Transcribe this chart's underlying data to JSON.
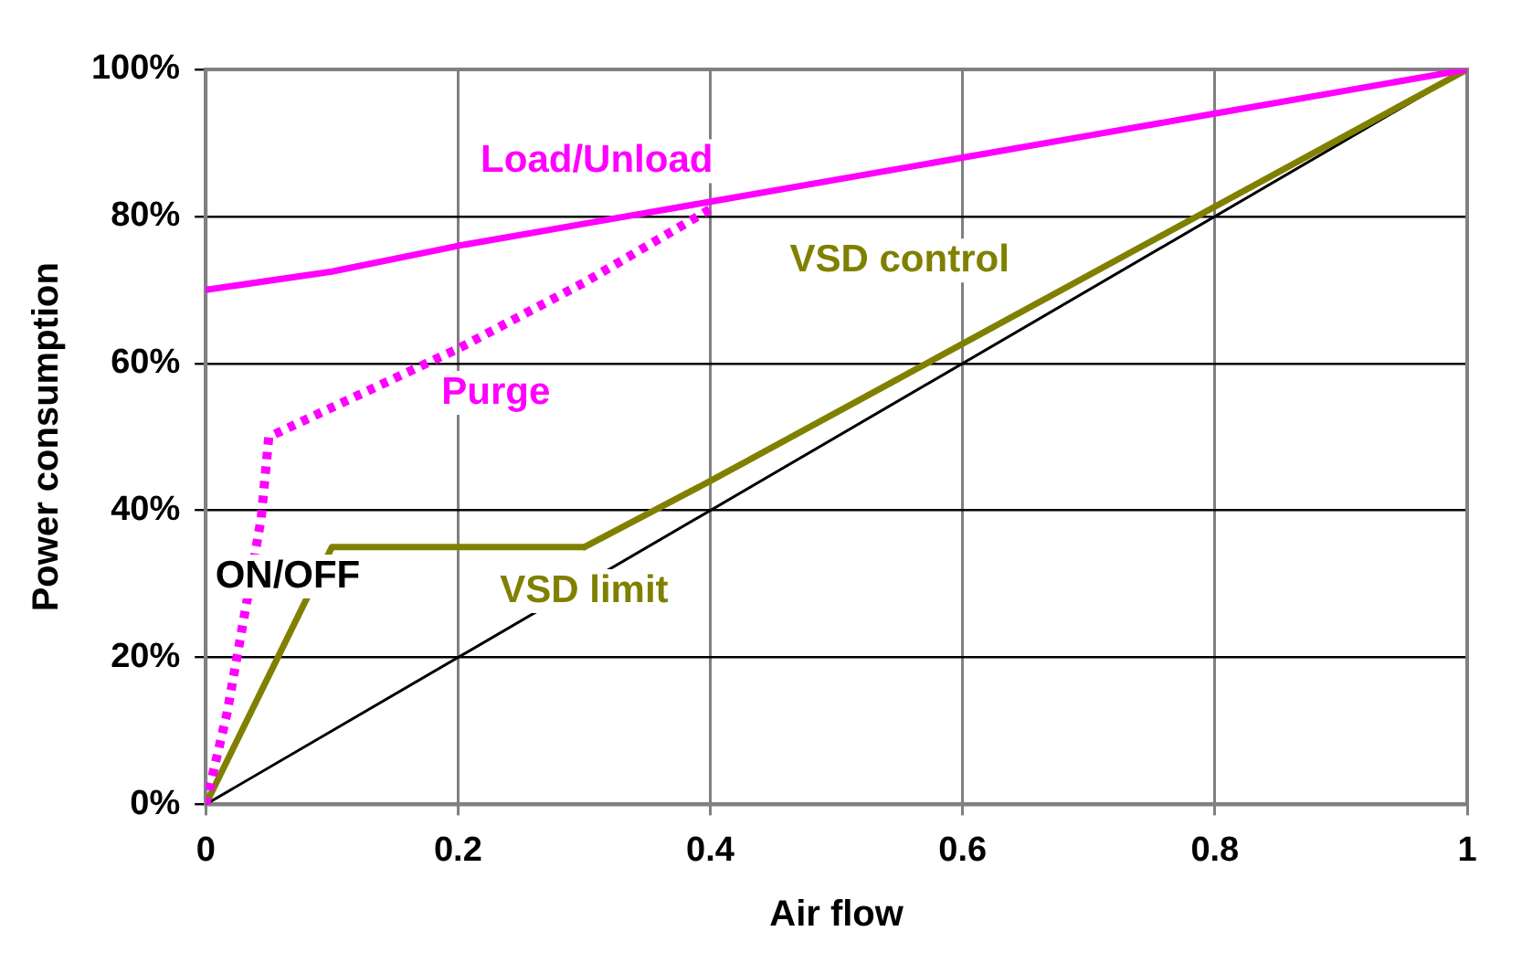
{
  "chart_data": {
    "type": "line",
    "xlabel": "Air flow",
    "ylabel": "Power consumption",
    "xlim": [
      0,
      1
    ],
    "xticks": [
      0,
      0.2,
      0.4,
      0.6,
      0.8,
      1
    ],
    "ylim": [
      0,
      100
    ],
    "yticks": [
      {
        "value": 0,
        "label": "0%"
      },
      {
        "value": 20,
        "label": "20%"
      },
      {
        "value": 40,
        "label": "40%"
      },
      {
        "value": 60,
        "label": "60%"
      },
      {
        "value": 80,
        "label": "80%"
      },
      {
        "value": 100,
        "label": "100%"
      }
    ],
    "grid": true,
    "legend": false,
    "marker": "none",
    "series": [
      {
        "name": "Load/Unload",
        "color": "#ff00ff",
        "x": [
          0,
          0.1,
          0.2,
          0.3,
          0.4,
          0.5,
          0.6,
          0.7,
          0.8,
          0.9,
          1
        ],
        "values": [
          70,
          72.5,
          76,
          79,
          82,
          85,
          88,
          91,
          94,
          97,
          100
        ]
      },
      {
        "name": "Purge",
        "color": "#ff00ff",
        "line_style": "dotted",
        "x": [
          0,
          0.017,
          0.033,
          0.044,
          0.05,
          0.1,
          0.2,
          0.3,
          0.4
        ],
        "values": [
          0,
          12.5,
          28,
          39,
          50,
          54,
          62,
          71,
          81
        ]
      },
      {
        "name": "VSD limit",
        "color": "#808000",
        "x": [
          0,
          0.1,
          0.3
        ],
        "values": [
          0,
          35,
          35
        ]
      },
      {
        "name": "VSD control",
        "color": "#808000",
        "x": [
          0.3,
          0.4,
          1
        ],
        "values": [
          35,
          44,
          100
        ]
      },
      {
        "name": "ON/OFF",
        "color": "#000000",
        "x": [
          0,
          0.97
        ],
        "values": [
          0,
          97
        ]
      }
    ]
  }
}
